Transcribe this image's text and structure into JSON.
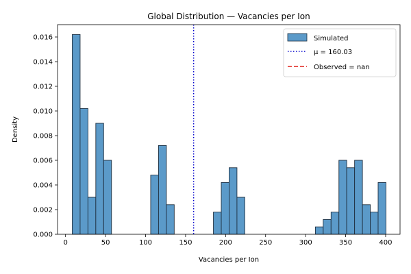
{
  "chart_data": {
    "type": "bar",
    "title": "Global Distribution — Vacancies per Ion",
    "xlabel": "Vacancies per Ion",
    "ylabel": "Density",
    "xlim": [
      -10,
      418
    ],
    "ylim": [
      0,
      0.017
    ],
    "xticks": [
      0,
      50,
      100,
      150,
      200,
      250,
      300,
      350,
      400
    ],
    "yticks": [
      0.0,
      0.002,
      0.004,
      0.006,
      0.008,
      0.01,
      0.012,
      0.014,
      0.016
    ],
    "ytick_labels": [
      "0.000",
      "0.002",
      "0.004",
      "0.006",
      "0.008",
      "0.010",
      "0.012",
      "0.014",
      "0.016"
    ],
    "grid": false,
    "legend_position": "top-right",
    "bin_start": 8.4,
    "bin_width": 9.8,
    "bins": [
      {
        "x0": 8.4,
        "density": 0.0162
      },
      {
        "x0": 18.2,
        "density": 0.0102
      },
      {
        "x0": 28.0,
        "density": 0.003
      },
      {
        "x0": 37.8,
        "density": 0.009
      },
      {
        "x0": 47.6,
        "density": 0.006
      },
      {
        "x0": 106.4,
        "density": 0.0048
      },
      {
        "x0": 116.2,
        "density": 0.0072
      },
      {
        "x0": 126.0,
        "density": 0.0024
      },
      {
        "x0": 184.8,
        "density": 0.0018
      },
      {
        "x0": 194.6,
        "density": 0.0042
      },
      {
        "x0": 204.4,
        "density": 0.0054
      },
      {
        "x0": 214.2,
        "density": 0.003
      },
      {
        "x0": 312.2,
        "density": 0.0006
      },
      {
        "x0": 322.0,
        "density": 0.0012
      },
      {
        "x0": 331.8,
        "density": 0.0018
      },
      {
        "x0": 341.6,
        "density": 0.006
      },
      {
        "x0": 351.4,
        "density": 0.0054
      },
      {
        "x0": 361.2,
        "density": 0.006
      },
      {
        "x0": 371.0,
        "density": 0.0024
      },
      {
        "x0": 380.8,
        "density": 0.0018
      },
      {
        "x0": 390.6,
        "density": 0.0042
      }
    ],
    "mean_line": {
      "x": 160.03,
      "label": "μ = 160.03",
      "color": "#0000cc"
    },
    "legend": [
      {
        "label": "Simulated",
        "kind": "patch",
        "color": "#5b9ac9"
      },
      {
        "label": "μ = 160.03",
        "kind": "dotted",
        "color": "#0000cc"
      },
      {
        "label": "Observed = nan",
        "kind": "dashed",
        "color": "#e0201b"
      }
    ],
    "colors": {
      "bar_fill": "#5b9ac9",
      "bar_edge": "#1f2f3f"
    }
  }
}
